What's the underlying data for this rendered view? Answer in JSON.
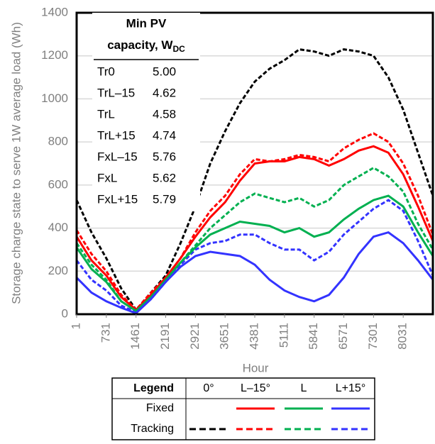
{
  "chart_data": {
    "type": "line",
    "x_label": "Hour",
    "y_label": "Storage charge state to serve 1W average load (Wh)",
    "xlim": [
      1,
      8760
    ],
    "ylim": [
      0,
      1400
    ],
    "xticks": [
      1,
      731,
      1461,
      2191,
      2921,
      3651,
      4381,
      5111,
      5841,
      6571,
      7301,
      8031
    ],
    "yticks": [
      0,
      200,
      400,
      600,
      800,
      1000,
      1200,
      1400
    ],
    "grid": true,
    "x": [
      1,
      366,
      731,
      1096,
      1461,
      1826,
      2191,
      2556,
      2921,
      3286,
      3651,
      4016,
      4381,
      4746,
      5111,
      5476,
      5841,
      6206,
      6571,
      6936,
      7301,
      7666,
      8031,
      8396,
      8760
    ],
    "series": [
      {
        "name": "Tr0",
        "min_pv": "5.00",
        "color": "#000000",
        "dashed": true,
        "values": [
          530,
          380,
          260,
          120,
          20,
          100,
          180,
          330,
          500,
          700,
          850,
          980,
          1080,
          1140,
          1180,
          1230,
          1220,
          1200,
          1230,
          1220,
          1200,
          1100,
          950,
          750,
          550
        ]
      },
      {
        "name": "TrL–15",
        "min_pv": "4.62",
        "color": "#ff0000",
        "dashed": true,
        "values": [
          390,
          280,
          200,
          90,
          20,
          100,
          170,
          260,
          380,
          480,
          550,
          650,
          720,
          710,
          720,
          740,
          730,
          710,
          770,
          810,
          840,
          800,
          700,
          550,
          370
        ]
      },
      {
        "name": "TrL",
        "min_pv": "4.58",
        "color": "#00b050",
        "dashed": true,
        "values": [
          330,
          230,
          160,
          60,
          15,
          80,
          160,
          240,
          320,
          400,
          460,
          520,
          560,
          540,
          520,
          540,
          500,
          530,
          600,
          640,
          680,
          640,
          570,
          420,
          300
        ]
      },
      {
        "name": "TrL+15",
        "min_pv": "4.74",
        "color": "#3333ff",
        "dashed": true,
        "values": [
          250,
          160,
          110,
          40,
          10,
          70,
          150,
          230,
          300,
          330,
          340,
          370,
          370,
          330,
          300,
          300,
          250,
          290,
          370,
          430,
          490,
          530,
          480,
          340,
          180
        ]
      },
      {
        "name": "FxL–15",
        "min_pv": "5.76",
        "color": "#ff0000",
        "dashed": false,
        "values": [
          360,
          250,
          180,
          80,
          20,
          90,
          170,
          260,
          360,
          450,
          520,
          620,
          700,
          710,
          710,
          730,
          720,
          690,
          720,
          760,
          780,
          750,
          650,
          500,
          340
        ]
      },
      {
        "name": "FxL",
        "min_pv": "5.62",
        "color": "#00b050",
        "dashed": false,
        "values": [
          310,
          210,
          150,
          60,
          15,
          80,
          160,
          240,
          310,
          370,
          400,
          430,
          420,
          410,
          380,
          400,
          360,
          380,
          440,
          490,
          530,
          550,
          500,
          380,
          270
        ]
      },
      {
        "name": "FxL+15",
        "min_pv": "5.79",
        "color": "#3333ff",
        "dashed": false,
        "values": [
          170,
          100,
          60,
          30,
          5,
          70,
          150,
          220,
          270,
          290,
          280,
          270,
          230,
          160,
          110,
          80,
          60,
          90,
          170,
          280,
          360,
          380,
          330,
          250,
          160
        ]
      }
    ],
    "inset_table": {
      "header": [
        "Min PV",
        "capacity, W"
      ],
      "header_subscript": "DC"
    },
    "legend": {
      "title": "Legend",
      "columns": [
        "0°",
        "L–15°",
        "L",
        "L+15°"
      ],
      "rows": [
        "Fixed",
        "Tracking"
      ]
    }
  }
}
